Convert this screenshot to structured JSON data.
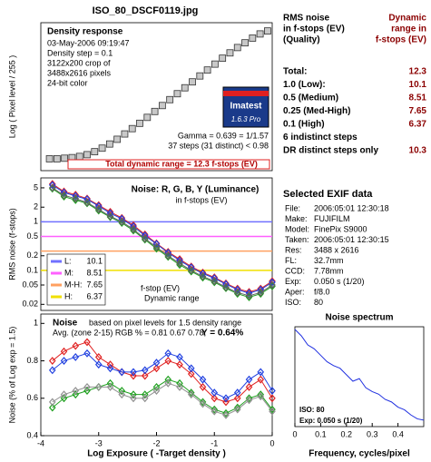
{
  "title": "ISO_80_DSCF0119.jpg",
  "chart_data": [
    {
      "type": "scatter",
      "marker": "square",
      "title": "Density response",
      "info": [
        "03-May-2006 09:19:47",
        "Density step = 0.1",
        "3122x200 crop of",
        "3488x2616 pixels",
        "24-bit color"
      ],
      "logo": [
        "Imatest",
        "1.6.3 Pro"
      ],
      "notes": [
        "Gamma = 0.639 = 1/1.57",
        "37 steps (31 distinct) < 0.98"
      ],
      "total_range": "Total dynamic range = 12.3 f-stops (EV)",
      "ylabel": "Log ( Pixel level / 255 )",
      "xlim": [
        -4,
        0
      ],
      "ylim": [
        -2.4,
        0.1
      ],
      "x": [
        -3.85,
        -3.72,
        -3.59,
        -3.46,
        -3.33,
        -3.2,
        -3.07,
        -2.94,
        -2.81,
        -2.68,
        -2.55,
        -2.42,
        -2.29,
        -2.16,
        -2.03,
        -1.9,
        -1.77,
        -1.64,
        -1.51,
        -1.38,
        -1.25,
        -1.12,
        -0.99,
        -0.86,
        -0.73,
        -0.6,
        -0.47,
        -0.34,
        -0.21,
        -0.08
      ],
      "series": [
        {
          "color": "#c8c8c8",
          "values": [
            -2.2,
            -2.2,
            -2.19,
            -2.18,
            -2.16,
            -2.13,
            -2.08,
            -2.02,
            -1.95,
            -1.87,
            -1.78,
            -1.69,
            -1.6,
            -1.5,
            -1.4,
            -1.3,
            -1.2,
            -1.1,
            -1.0,
            -0.9,
            -0.8,
            -0.7,
            -0.6,
            -0.5,
            -0.41,
            -0.32,
            -0.24,
            -0.16,
            -0.09,
            -0.04
          ]
        }
      ]
    },
    {
      "type": "line",
      "marker": "diamond",
      "title": "Noise: R, G, B, Y (Luminance)",
      "subtitle": "in f-stops (EV)",
      "annotations": [
        "f-stop (EV)",
        "Dynamic range"
      ],
      "ylabel": "RMS noise (f-stops)",
      "yscale": "log",
      "xlim": [
        -4,
        0
      ],
      "ylim": [
        0.015,
        8
      ],
      "yticks": [
        5,
        2,
        1,
        0.5,
        0.2,
        0.1,
        0.05,
        0.02
      ],
      "x": [
        -3.8,
        -3.6,
        -3.4,
        -3.2,
        -3.0,
        -2.8,
        -2.6,
        -2.4,
        -2.2,
        -2.0,
        -1.8,
        -1.6,
        -1.4,
        -1.2,
        -1.0,
        -0.8,
        -0.6,
        -0.4,
        -0.2,
        0.0
      ],
      "series": [
        {
          "color": "#e02020",
          "values": [
            6,
            4.2,
            3.6,
            3,
            2.2,
            1.6,
            1.2,
            0.85,
            0.55,
            0.36,
            0.24,
            0.17,
            0.12,
            0.09,
            0.072,
            0.054,
            0.042,
            0.036,
            0.042,
            0.06
          ]
        },
        {
          "color": "#20a020",
          "values": [
            4.8,
            3.3,
            2.8,
            2.4,
            1.7,
            1.25,
            0.95,
            0.66,
            0.43,
            0.28,
            0.19,
            0.13,
            0.095,
            0.071,
            0.057,
            0.043,
            0.033,
            0.028,
            0.033,
            0.047
          ]
        },
        {
          "color": "#2040e0",
          "values": [
            5.7,
            4,
            3.4,
            2.9,
            2.1,
            1.5,
            1.15,
            0.8,
            0.52,
            0.35,
            0.23,
            0.16,
            0.115,
            0.086,
            0.069,
            0.052,
            0.04,
            0.034,
            0.04,
            0.057
          ]
        },
        {
          "color": "#606060",
          "values": [
            5,
            3.5,
            3,
            2.5,
            1.8,
            1.3,
            1.0,
            0.7,
            0.45,
            0.3,
            0.2,
            0.14,
            0.1,
            0.075,
            0.06,
            0.045,
            0.035,
            0.03,
            0.035,
            0.05
          ]
        }
      ],
      "levels": [
        {
          "label": "L:",
          "value": 1,
          "dr": 10.1,
          "color": "#7070ff"
        },
        {
          "label": "M:",
          "value": 0.5,
          "dr": 8.51,
          "color": "#ff60ff"
        },
        {
          "label": "M-H:",
          "value": 0.25,
          "dr": 7.65,
          "color": "#ffa060"
        },
        {
          "label": "H:",
          "value": 0.1,
          "dr": 6.37,
          "color": "#f0e000"
        }
      ]
    },
    {
      "type": "line",
      "marker": "diamond",
      "title": "Noise",
      "subtitle": "based on pixel levels for 1.5 density range",
      "annotations": [
        "Avg. (zone 2-15) RGB % = 0.81  0.67  0.78;",
        "Y = 0.64%"
      ],
      "ylabel": "Noise (% of Log exp = 1.5)",
      "xlabel": "Log Exposure ( -Target density )",
      "xlim": [
        -4,
        0
      ],
      "ylim": [
        0.4,
        1.05
      ],
      "xticks": [
        -4,
        -3,
        -2,
        -1,
        0
      ],
      "yticks": [
        0.4,
        0.6,
        0.8,
        1
      ],
      "x": [
        -3.8,
        -3.6,
        -3.4,
        -3.2,
        -3.0,
        -2.8,
        -2.6,
        -2.4,
        -2.2,
        -2.0,
        -1.8,
        -1.6,
        -1.4,
        -1.2,
        -1.0,
        -0.8,
        -0.6,
        -0.4,
        -0.2,
        0.0
      ],
      "series": [
        {
          "color": "#e02020",
          "values": [
            0.8,
            0.85,
            0.88,
            0.9,
            0.82,
            0.78,
            0.74,
            0.72,
            0.72,
            0.76,
            0.8,
            0.78,
            0.73,
            0.66,
            0.6,
            0.58,
            0.6,
            0.66,
            0.7,
            0.6
          ]
        },
        {
          "color": "#2040e0",
          "values": [
            0.75,
            0.8,
            0.82,
            0.84,
            0.78,
            0.76,
            0.74,
            0.74,
            0.75,
            0.79,
            0.84,
            0.82,
            0.76,
            0.7,
            0.63,
            0.6,
            0.63,
            0.7,
            0.74,
            0.64
          ]
        },
        {
          "color": "#20a020",
          "values": [
            0.55,
            0.6,
            0.62,
            0.64,
            0.66,
            0.68,
            0.64,
            0.62,
            0.62,
            0.66,
            0.7,
            0.68,
            0.63,
            0.58,
            0.54,
            0.52,
            0.55,
            0.6,
            0.62,
            0.54
          ]
        },
        {
          "color": "#909090",
          "values": [
            0.58,
            0.62,
            0.64,
            0.66,
            0.66,
            0.66,
            0.62,
            0.6,
            0.6,
            0.64,
            0.68,
            0.66,
            0.62,
            0.57,
            0.53,
            0.51,
            0.54,
            0.59,
            0.61,
            0.53
          ]
        }
      ]
    },
    {
      "type": "line",
      "title": "Noise spectrum",
      "xlabel": "Frequency, cycles/pixel",
      "annotations": [
        "ISO:   80",
        "Exp:  0.050 s   (1/20)"
      ],
      "xlim": [
        0,
        0.5
      ],
      "ylim": [
        0.25,
        1.02
      ],
      "xticks": [
        0,
        0.1,
        0.2,
        0.3,
        0.4
      ],
      "x": [
        0,
        0.025,
        0.05,
        0.075,
        0.1,
        0.125,
        0.15,
        0.175,
        0.2,
        0.225,
        0.25,
        0.275,
        0.3,
        0.325,
        0.35,
        0.375,
        0.4,
        0.425,
        0.45,
        0.475,
        0.5
      ],
      "series": [
        {
          "color": "#2030e0",
          "values": [
            1,
            0.95,
            0.88,
            0.85,
            0.8,
            0.75,
            0.72,
            0.7,
            0.65,
            0.6,
            0.62,
            0.55,
            0.52,
            0.5,
            0.46,
            0.44,
            0.4,
            0.38,
            0.34,
            0.31,
            0.3
          ]
        }
      ]
    }
  ],
  "summary": {
    "header": [
      [
        "RMS noise",
        "in f-stops (EV)",
        "(Quality)"
      ],
      [
        "Dynamic",
        "range in",
        "f-stops (EV)"
      ]
    ],
    "rows": [
      {
        "label": "Total:",
        "value": 12.3
      },
      {
        "label": "1.0  (Low):",
        "value": 10.1
      },
      {
        "label": "0.5  (Medium)",
        "value": 8.51
      },
      {
        "label": "0.25 (Med-High)",
        "value": 7.65
      },
      {
        "label": "0.1  (High)",
        "value": 6.37
      },
      {
        "label": "6 indistinct steps"
      },
      {
        "label": "DR distinct steps only",
        "value": 10.3
      }
    ]
  },
  "exif": {
    "title": "Selected EXIF data",
    "rows": [
      [
        "File:",
        "2006:05:01 12:30:18"
      ],
      [
        "Make:",
        "FUJIFILM"
      ],
      [
        "Model:",
        "FinePix S9000"
      ],
      [
        "Taken:",
        "2006:05:01 12:30:15"
      ],
      [
        "Res:",
        "3488 x 2616"
      ],
      [
        "FL:",
        "32.7mm"
      ],
      [
        "CCD:",
        "7.78mm"
      ],
      [
        "Exp:",
        "0.050 s (1/20)"
      ],
      [
        "Aper:",
        "f/8.0"
      ],
      [
        "ISO:",
        "80"
      ]
    ]
  }
}
